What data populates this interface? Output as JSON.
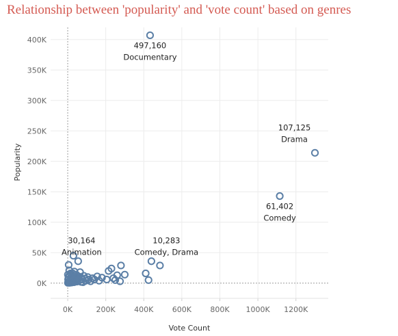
{
  "chart_data": {
    "type": "scatter",
    "title": "Relationship between 'popularity' and 'vote count' based on genres",
    "xlabel": "Vote Count",
    "ylabel": "Popularity",
    "xlim": [
      -90000,
      1370000
    ],
    "ylim": [
      -25000,
      420000
    ],
    "x_ticks": [
      0,
      200000,
      400000,
      600000,
      800000,
      1000000,
      1200000
    ],
    "x_tick_labels": [
      "0K",
      "200K",
      "400K",
      "600K",
      "800K",
      "1000K",
      "1200K"
    ],
    "y_ticks": [
      0,
      50000,
      100000,
      150000,
      200000,
      250000,
      300000,
      350000,
      400000
    ],
    "y_tick_labels": [
      "0K",
      "50K",
      "100K",
      "150K",
      "200K",
      "250K",
      "300K",
      "350K",
      "400K"
    ],
    "grid": true,
    "marker_color": "#5b7fa6",
    "points": [
      {
        "x": 433000,
        "y": 407000
      },
      {
        "x": 1300000,
        "y": 214000
      },
      {
        "x": 1115000,
        "y": 143000
      },
      {
        "x": 30000,
        "y": 45000
      },
      {
        "x": 55000,
        "y": 36000
      },
      {
        "x": 440000,
        "y": 36000
      },
      {
        "x": 485000,
        "y": 29000
      },
      {
        "x": 410000,
        "y": 16000
      },
      {
        "x": 425000,
        "y": 5000
      },
      {
        "x": 280000,
        "y": 29000
      },
      {
        "x": 230000,
        "y": 24000
      },
      {
        "x": 215000,
        "y": 20000
      },
      {
        "x": 300000,
        "y": 14000
      },
      {
        "x": 260000,
        "y": 13000
      },
      {
        "x": 240000,
        "y": 8000
      },
      {
        "x": 275000,
        "y": 3000
      },
      {
        "x": 250000,
        "y": 5000
      },
      {
        "x": 205000,
        "y": 6000
      },
      {
        "x": 180000,
        "y": 9000
      },
      {
        "x": 155000,
        "y": 11000
      },
      {
        "x": 165000,
        "y": 4000
      },
      {
        "x": 140000,
        "y": 6000
      },
      {
        "x": 120000,
        "y": 3000
      },
      {
        "x": 130000,
        "y": 8000
      },
      {
        "x": 105000,
        "y": 10000
      },
      {
        "x": 95000,
        "y": 4000
      },
      {
        "x": 85000,
        "y": 12000
      },
      {
        "x": 75000,
        "y": 6000
      },
      {
        "x": 65000,
        "y": 18000
      },
      {
        "x": 70000,
        "y": 2000
      },
      {
        "x": 50000,
        "y": 8000
      },
      {
        "x": 45000,
        "y": 14000
      },
      {
        "x": 40000,
        "y": 3000
      },
      {
        "x": 35000,
        "y": 19000
      },
      {
        "x": 30000,
        "y": 7000
      },
      {
        "x": 25000,
        "y": 12000
      },
      {
        "x": 22000,
        "y": 2000
      },
      {
        "x": 18000,
        "y": 9000
      },
      {
        "x": 15000,
        "y": 16000
      },
      {
        "x": 12000,
        "y": 4000
      },
      {
        "x": 8000,
        "y": 21000
      },
      {
        "x": 5000,
        "y": 30000
      },
      {
        "x": 4000,
        "y": 10000
      },
      {
        "x": 3000,
        "y": 2000
      },
      {
        "x": 2000,
        "y": 6000
      },
      {
        "x": 1000,
        "y": 14000
      },
      {
        "x": 1000,
        "y": 500
      },
      {
        "x": 6000,
        "y": 1000
      },
      {
        "x": 10000,
        "y": 500
      },
      {
        "x": 20000,
        "y": 1000
      },
      {
        "x": 28000,
        "y": 3500
      },
      {
        "x": 38000,
        "y": 9000
      },
      {
        "x": 48000,
        "y": 2500
      },
      {
        "x": 58000,
        "y": 11000
      },
      {
        "x": 62000,
        "y": 5000
      },
      {
        "x": 80000,
        "y": 1500
      },
      {
        "x": 90000,
        "y": 7500
      },
      {
        "x": 110000,
        "y": 6000
      },
      {
        "x": 16000,
        "y": 6000
      },
      {
        "x": 26000,
        "y": 16000
      },
      {
        "x": 42000,
        "y": 6500
      },
      {
        "x": 9000,
        "y": 13000
      },
      {
        "x": 33000,
        "y": 1500
      },
      {
        "x": 52000,
        "y": 4500
      },
      {
        "x": 68000,
        "y": 9500
      },
      {
        "x": 14000,
        "y": 2500
      }
    ],
    "annotations": [
      {
        "x": 433000,
        "y": 407000,
        "lines": [
          "497,160",
          "Documentary"
        ]
      },
      {
        "x": 1300000,
        "y": 214000,
        "lines": [
          "107,125",
          "Drama"
        ]
      },
      {
        "x": 1115000,
        "y": 143000,
        "lines": [
          "61,402",
          "Comedy"
        ]
      },
      {
        "x": 30000,
        "y": 45000,
        "lines": [
          "30,164",
          "Animation"
        ]
      },
      {
        "x": 440000,
        "y": 36000,
        "lines": [
          "10,283",
          "Comedy, Drama"
        ]
      }
    ]
  }
}
